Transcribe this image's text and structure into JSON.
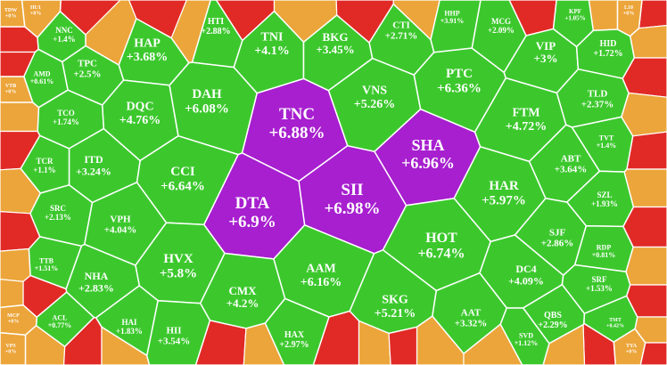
{
  "chart_data": {
    "type": "voronoi",
    "categories": [
      "TNC",
      "DTA",
      "SII",
      "SHA",
      "DAH",
      "HAP",
      "TNI",
      "BKG",
      "CTI",
      "VNS",
      "PTC",
      "VIP",
      "HID",
      "DQC",
      "TPC",
      "NNC",
      "AMD",
      "TCO",
      "FTM",
      "TLD",
      "CCI",
      "ITD",
      "TCR",
      "SRC",
      "VPH",
      "HAR",
      "ABT",
      "TVT",
      "SZL",
      "HOT",
      "SJF",
      "RDP",
      "HVX",
      "NHA",
      "TTB",
      "CMX",
      "AAM",
      "SKG",
      "DC4",
      "SRF",
      "AAT",
      "QBS",
      "HII",
      "HAI",
      "ACL",
      "HAX",
      "SVD",
      "TMT",
      "HTI",
      "MCG",
      "HHP",
      "KPF",
      "TDW",
      "HU1",
      "VTB",
      "MCP",
      "VPS",
      "TYA",
      "L10"
    ],
    "values": [
      6.88,
      6.9,
      6.98,
      6.96,
      6.08,
      3.68,
      4.1,
      3.45,
      2.71,
      5.26,
      6.36,
      3,
      1.72,
      4.76,
      2.5,
      1.4,
      0.61,
      1.74,
      4.72,
      2.37,
      6.64,
      3.24,
      1.1,
      2.13,
      4.04,
      5.97,
      3.64,
      1.4,
      1.93,
      6.74,
      2.86,
      0.81,
      5.8,
      2.83,
      1.51,
      4.2,
      6.16,
      5.21,
      4.09,
      1.53,
      3.32,
      2.29,
      3.54,
      1.83,
      0.77,
      2.97,
      1.12,
      0.42,
      2.88,
      2.09,
      3.91,
      1.05,
      0,
      0,
      0,
      0,
      0,
      0,
      0
    ],
    "value_labels": [
      "+6.88%",
      "+6.9%",
      "+6.98%",
      "+6.96%",
      "+6.08%",
      "+3.68%",
      "+4.1%",
      "+3.45%",
      "+2.71%",
      "+5.26%",
      "+6.36%",
      "+3%",
      "+1.72%",
      "+4.76%",
      "+2.5%",
      "+1.4%",
      "+0.61%",
      "+1.74%",
      "+4.72%",
      "+2.37%",
      "+6.64%",
      "+3.24%",
      "+1.1%",
      "+2.13%",
      "+4.04%",
      "+5.97%",
      "+3.64%",
      "+1.4%",
      "+1.93%",
      "+6.74%",
      "+2.86%",
      "+0.81%",
      "+5.8%",
      "+2.83%",
      "+1.51%",
      "+4.2%",
      "+6.16%",
      "+5.21%",
      "+4.09%",
      "+1.53%",
      "+3.32%",
      "+2.29%",
      "+3.54%",
      "+1.83%",
      "+0.77%",
      "+2.97%",
      "+1.12%",
      "+0.42%",
      "+2.88%",
      "+2.09%",
      "+3.91%",
      "+1.05%",
      "+0%",
      "+0%",
      "+0%",
      "+0%",
      "+0%",
      "+0%",
      "+0%"
    ],
    "colors": [
      "#a71fcf",
      "#a71fcf",
      "#a71fcf",
      "#a71fcf",
      "#3cc82d",
      "#3cc82d",
      "#3cc82d",
      "#3cc82d",
      "#3cc82d",
      "#3cc82d",
      "#3cc82d",
      "#3cc82d",
      "#3cc82d",
      "#3cc82d",
      "#3cc82d",
      "#3cc82d",
      "#3cc82d",
      "#3cc82d",
      "#3cc82d",
      "#3cc82d",
      "#3cc82d",
      "#3cc82d",
      "#3cc82d",
      "#3cc82d",
      "#3cc82d",
      "#3cc82d",
      "#3cc82d",
      "#3cc82d",
      "#3cc82d",
      "#3cc82d",
      "#3cc82d",
      "#3cc82d",
      "#3cc82d",
      "#3cc82d",
      "#3cc82d",
      "#3cc82d",
      "#3cc82d",
      "#3cc82d",
      "#3cc82d",
      "#3cc82d",
      "#3cc82d",
      "#3cc82d",
      "#3cc82d",
      "#3cc82d",
      "#3cc82d",
      "#3cc82d",
      "#3cc82d",
      "#3cc82d",
      "#3cc82d",
      "#3cc82d",
      "#3cc82d",
      "#3cc82d",
      "#eca53a",
      "#eca53a",
      "#eca53a",
      "#eca53a",
      "#eca53a",
      "#eca53a",
      "#eca53a"
    ]
  }
}
